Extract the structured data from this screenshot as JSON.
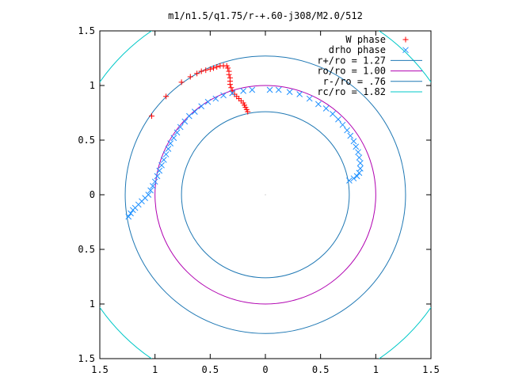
{
  "chart_data": {
    "type": "scatter",
    "title": "m1/n1.5/q1.75/r-+.60-j308/M2.0/512",
    "xlabel": "",
    "ylabel": "",
    "xlim": [
      -1.5,
      1.5
    ],
    "ylim": [
      -1.5,
      1.5
    ],
    "x_ticks": [
      -1.5,
      -1,
      -0.5,
      0,
      0.5,
      1,
      1.5
    ],
    "y_ticks": [
      -1.5,
      -1,
      -0.5,
      0,
      0.5,
      1,
      1.5
    ],
    "x_tick_labels": [
      "1.5",
      "1",
      "0.5",
      "0",
      "0.5",
      "1",
      "1.5"
    ],
    "y_tick_labels": [
      "1.5",
      "1",
      "0.5",
      "0",
      "0.5",
      "1",
      "1.5"
    ],
    "grid": false,
    "legend_position": "top-right",
    "series": [
      {
        "name": "W phase",
        "marker": "plus",
        "color": "#ff0000",
        "points": [
          [
            -1.03,
            0.72
          ],
          [
            -0.9,
            0.9
          ],
          [
            -0.76,
            1.03
          ],
          [
            -0.68,
            1.08
          ],
          [
            -0.62,
            1.11
          ],
          [
            -0.58,
            1.13
          ],
          [
            -0.54,
            1.14
          ],
          [
            -0.5,
            1.15
          ],
          [
            -0.47,
            1.16
          ],
          [
            -0.44,
            1.17
          ],
          [
            -0.41,
            1.18
          ],
          [
            -0.38,
            1.18
          ],
          [
            -0.35,
            1.18
          ],
          [
            -0.34,
            1.16
          ],
          [
            -0.33,
            1.13
          ],
          [
            -0.33,
            1.1
          ],
          [
            -0.32,
            1.07
          ],
          [
            -0.32,
            1.04
          ],
          [
            -0.32,
            1.01
          ],
          [
            -0.31,
            0.98
          ],
          [
            -0.3,
            0.95
          ],
          [
            -0.28,
            0.92
          ],
          [
            -0.26,
            0.9
          ],
          [
            -0.24,
            0.88
          ],
          [
            -0.22,
            0.86
          ],
          [
            -0.2,
            0.84
          ],
          [
            -0.19,
            0.82
          ],
          [
            -0.18,
            0.8
          ],
          [
            -0.17,
            0.78
          ],
          [
            -0.16,
            0.76
          ]
        ]
      },
      {
        "name": "drho phase",
        "marker": "cross",
        "color": "#1e90ff",
        "points": [
          [
            -1.24,
            -0.2
          ],
          [
            -1.22,
            -0.17
          ],
          [
            -1.2,
            -0.14
          ],
          [
            -1.18,
            -0.12
          ],
          [
            -1.15,
            -0.09
          ],
          [
            -1.12,
            -0.06
          ],
          [
            -1.09,
            -0.03
          ],
          [
            -1.06,
            0.0
          ],
          [
            -1.04,
            0.04
          ],
          [
            -1.02,
            0.08
          ],
          [
            -1.0,
            0.12
          ],
          [
            -0.98,
            0.17
          ],
          [
            -0.96,
            0.22
          ],
          [
            -0.94,
            0.27
          ],
          [
            -0.92,
            0.32
          ],
          [
            -0.9,
            0.37
          ],
          [
            -0.88,
            0.42
          ],
          [
            -0.86,
            0.47
          ],
          [
            -0.83,
            0.52
          ],
          [
            -0.8,
            0.57
          ],
          [
            -0.77,
            0.62
          ],
          [
            -0.73,
            0.67
          ],
          [
            -0.69,
            0.72
          ],
          [
            -0.64,
            0.76
          ],
          [
            -0.58,
            0.81
          ],
          [
            -0.52,
            0.85
          ],
          [
            -0.45,
            0.88
          ],
          [
            -0.38,
            0.91
          ],
          [
            -0.3,
            0.93
          ],
          [
            -0.2,
            0.95
          ],
          [
            -0.12,
            0.96
          ],
          [
            0.04,
            0.96
          ],
          [
            0.12,
            0.96
          ],
          [
            0.22,
            0.94
          ],
          [
            0.31,
            0.92
          ],
          [
            0.4,
            0.88
          ],
          [
            0.48,
            0.83
          ],
          [
            0.55,
            0.79
          ],
          [
            0.61,
            0.74
          ],
          [
            0.66,
            0.69
          ],
          [
            0.7,
            0.64
          ],
          [
            0.74,
            0.59
          ],
          [
            0.77,
            0.54
          ],
          [
            0.8,
            0.49
          ],
          [
            0.82,
            0.44
          ],
          [
            0.84,
            0.39
          ],
          [
            0.85,
            0.34
          ],
          [
            0.86,
            0.29
          ],
          [
            0.86,
            0.24
          ],
          [
            0.85,
            0.2
          ],
          [
            0.83,
            0.17
          ],
          [
            0.8,
            0.15
          ],
          [
            0.76,
            0.13
          ]
        ]
      }
    ],
    "circles": [
      {
        "name": "r+/ro = 1.27",
        "radius": 1.27,
        "color": "#1f78b4"
      },
      {
        "name": "ro/ro = 1.00",
        "radius": 1.0,
        "color": "#b000b0"
      },
      {
        "name": "r-/ro = .76",
        "radius": 0.76,
        "color": "#1f78b4"
      },
      {
        "name": "rc/ro = 1.82",
        "radius": 1.82,
        "color": "#00c8c8"
      }
    ]
  }
}
